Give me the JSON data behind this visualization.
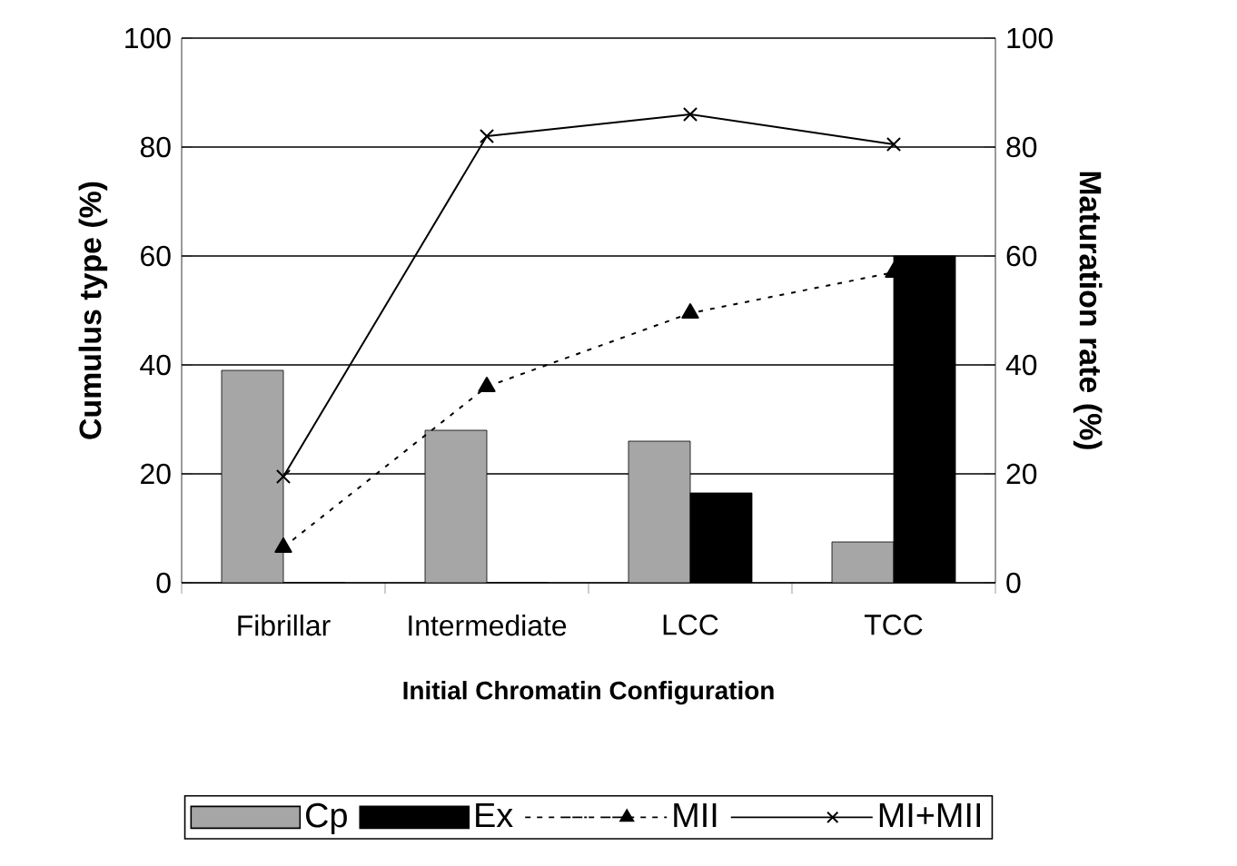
{
  "chart_data": {
    "type": "bar",
    "xlabel": "Initial Chromatin Configuration",
    "ylabel": "Cumulus type (%)",
    "y2label": "Maturation rate (%)",
    "categories": [
      "Fibrillar",
      "Intermediate",
      "LCC",
      "TCC"
    ],
    "series": [
      {
        "name": "Cp",
        "color": "#a6a6a6",
        "values": [
          39,
          28,
          26,
          7.5
        ]
      },
      {
        "name": "Ex",
        "color": "#000000",
        "values": [
          0,
          0,
          16.5,
          60
        ]
      },
      {
        "name": "MII",
        "type": "line",
        "axis": "y2",
        "color": "#000000",
        "marker": "triangle",
        "line_style": "dotted",
        "values": [
          6.5,
          36,
          49.5,
          57
        ]
      },
      {
        "name": "MI+MII",
        "type": "line",
        "axis": "y2",
        "color": "#000000",
        "marker": "cross",
        "line_style": "solid",
        "values": [
          19.5,
          82,
          86,
          80.5
        ]
      }
    ],
    "ylim": [
      0,
      100
    ],
    "yticks": [
      0,
      20,
      40,
      60,
      80,
      100
    ],
    "y2lim": [
      0,
      100
    ],
    "y2ticks": [
      0,
      20,
      40,
      60,
      80,
      100
    ],
    "grid": "y",
    "legend": "bottom"
  }
}
